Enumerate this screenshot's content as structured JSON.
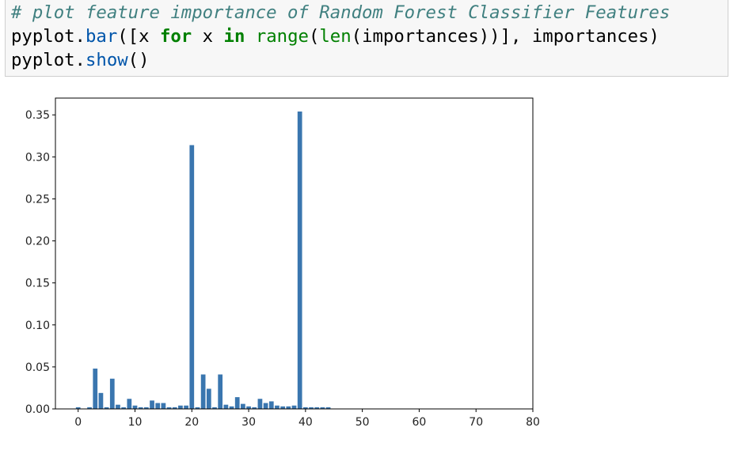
{
  "code_cell": {
    "lines": [
      [
        {
          "t": "# plot feature importance of Random Forest Classifier Features",
          "c": "comment"
        }
      ],
      [
        {
          "t": "pyplot.",
          "c": ""
        },
        {
          "t": "bar",
          "c": "fn"
        },
        {
          "t": "([x ",
          "c": ""
        },
        {
          "t": "for",
          "c": "kw"
        },
        {
          "t": " x ",
          "c": ""
        },
        {
          "t": "in",
          "c": "kw"
        },
        {
          "t": " ",
          "c": ""
        },
        {
          "t": "range",
          "c": "bi"
        },
        {
          "t": "(",
          "c": ""
        },
        {
          "t": "len",
          "c": "bi"
        },
        {
          "t": "(importances))], importances)",
          "c": ""
        }
      ],
      [
        {
          "t": "pyplot.",
          "c": ""
        },
        {
          "t": "show",
          "c": "fn"
        },
        {
          "t": "()",
          "c": ""
        }
      ]
    ]
  },
  "chart_data": {
    "type": "bar",
    "bar_color": "#3a76af",
    "xlim": [
      -4,
      80
    ],
    "ylim": [
      0,
      0.37
    ],
    "xticks": [
      0,
      10,
      20,
      30,
      40,
      50,
      60,
      70,
      80
    ],
    "yticks": [
      0.0,
      0.05,
      0.1,
      0.15,
      0.2,
      0.25,
      0.3,
      0.35
    ],
    "ytick_labels": [
      "0.00",
      "0.05",
      "0.10",
      "0.15",
      "0.20",
      "0.25",
      "0.30",
      "0.35"
    ],
    "xtick_labels": [
      "0",
      "10",
      "20",
      "30",
      "40",
      "50",
      "60",
      "70",
      "80"
    ],
    "grid": false,
    "x": [
      0,
      1,
      2,
      3,
      4,
      5,
      6,
      7,
      8,
      9,
      10,
      11,
      12,
      13,
      14,
      15,
      16,
      17,
      18,
      19,
      20,
      21,
      22,
      23,
      24,
      25,
      26,
      27,
      28,
      29,
      30,
      31,
      32,
      33,
      34,
      35,
      36,
      37,
      38,
      39,
      40,
      41,
      42,
      43,
      44
    ],
    "values": [
      0.002,
      0.0,
      0.002,
      0.048,
      0.019,
      0.002,
      0.036,
      0.005,
      0.002,
      0.012,
      0.004,
      0.002,
      0.002,
      0.01,
      0.007,
      0.007,
      0.002,
      0.002,
      0.004,
      0.004,
      0.314,
      0.002,
      0.041,
      0.024,
      0.002,
      0.041,
      0.005,
      0.003,
      0.014,
      0.006,
      0.003,
      0.002,
      0.012,
      0.007,
      0.009,
      0.004,
      0.003,
      0.003,
      0.004,
      0.354,
      0.002,
      0.002,
      0.002,
      0.002,
      0.002
    ]
  }
}
